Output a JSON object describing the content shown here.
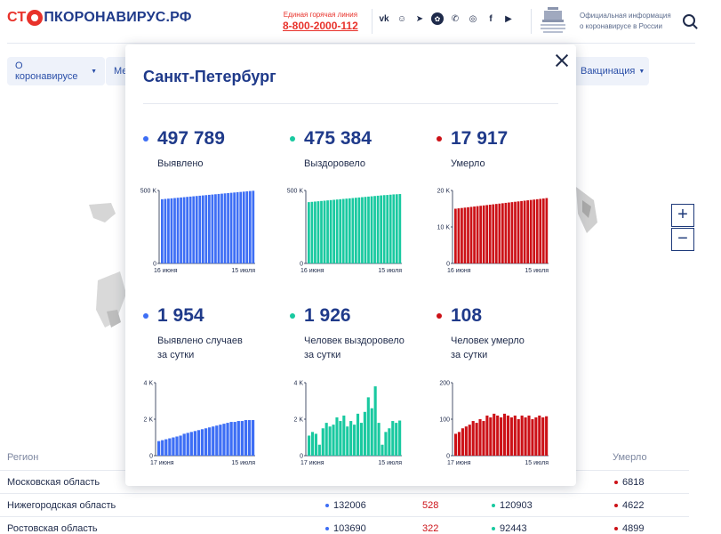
{
  "header": {
    "logo_prefix": "СТ",
    "logo_suffix": "ПКОРОНАВИРУС.РФ",
    "hotline_label": "Единая горячая линия",
    "hotline_number": "8-800-2000-112",
    "gov_text_line1": "Официальная информация",
    "gov_text_line2": "о коронавирусе в России",
    "social": [
      "vk-icon",
      "ok-icon",
      "telegram-icon",
      "viber-alt-icon",
      "viber-icon",
      "instagram-icon",
      "facebook-icon",
      "youtube-icon"
    ]
  },
  "nav": {
    "item1": "О коронавирусе",
    "item2": "Ме",
    "item3": "Вакцинация"
  },
  "zoom": {
    "plus": "+",
    "minus": "−"
  },
  "table": {
    "col_region": "Регион",
    "col_died": "Умерло",
    "rows": [
      {
        "region": "Московская область",
        "cases": "",
        "new": "",
        "recovered": "",
        "died": "6818"
      },
      {
        "region": "Нижегородская область",
        "cases": "132006",
        "new": "528",
        "recovered": "120903",
        "died": "4622"
      },
      {
        "region": "Ростовская область",
        "cases": "103690",
        "new": "322",
        "recovered": "92443",
        "died": "4899"
      }
    ]
  },
  "colors": {
    "blue": "#3d6ef5",
    "green": "#19c9a0",
    "red": "#cc1117",
    "title": "#1f3a8a"
  },
  "modal": {
    "title": "Санкт-Петербург",
    "stats": [
      {
        "value": "497 789",
        "label1": "Выявлено",
        "label2": ""
      },
      {
        "value": "475 384",
        "label1": "Выздоровело",
        "label2": ""
      },
      {
        "value": "17 917",
        "label1": "Умерло",
        "label2": ""
      },
      {
        "value": "1 954",
        "label1": "Выявлено случаев",
        "label2": "за сутки"
      },
      {
        "value": "1 926",
        "label1": "Человек выздоровело",
        "label2": "за сутки"
      },
      {
        "value": "108",
        "label1": "Человек умерло",
        "label2": "за сутки"
      }
    ]
  },
  "chart_data": [
    {
      "type": "bar",
      "color": "blue",
      "ylim": [
        0,
        500000
      ],
      "ytick_labels": [
        "500 K",
        "0"
      ],
      "xtick_labels": [
        "16 июня",
        "15 июля"
      ],
      "values": [
        440000,
        442000,
        444000,
        446000,
        448000,
        450000,
        452000,
        454000,
        456000,
        458000,
        460000,
        462000,
        464000,
        466000,
        468000,
        470000,
        472000,
        474000,
        476000,
        478000,
        480000,
        482000,
        484000,
        486000,
        488000,
        490000,
        492000,
        494000,
        496000,
        497789
      ]
    },
    {
      "type": "bar",
      "color": "green",
      "ylim": [
        0,
        500000
      ],
      "ytick_labels": [
        "500 K",
        "0"
      ],
      "xtick_labels": [
        "16 июня",
        "15 июля"
      ],
      "values": [
        420000,
        422000,
        424000,
        426000,
        428000,
        430000,
        432000,
        434000,
        436000,
        438000,
        440000,
        442000,
        444000,
        446000,
        448000,
        450000,
        452000,
        454000,
        456000,
        458000,
        460000,
        462000,
        464000,
        466000,
        468000,
        469000,
        471000,
        473000,
        474000,
        475384
      ]
    },
    {
      "type": "bar",
      "color": "red",
      "ylim": [
        0,
        20000
      ],
      "ytick_labels": [
        "20 K",
        "10 K",
        "0"
      ],
      "xtick_labels": [
        "16 июня",
        "15 июля"
      ],
      "values": [
        15000,
        15100,
        15200,
        15300,
        15400,
        15500,
        15600,
        15700,
        15800,
        15900,
        16000,
        16100,
        16200,
        16300,
        16400,
        16500,
        16600,
        16700,
        16800,
        16900,
        17000,
        17100,
        17200,
        17300,
        17400,
        17500,
        17600,
        17700,
        17800,
        17917
      ]
    },
    {
      "type": "bar",
      "color": "blue",
      "ylim": [
        0,
        4000
      ],
      "ytick_labels": [
        "4 K",
        "2 K",
        "0"
      ],
      "xtick_labels": [
        "17 июня",
        "15 июля"
      ],
      "values": [
        800,
        850,
        900,
        950,
        1000,
        1050,
        1100,
        1200,
        1250,
        1300,
        1350,
        1400,
        1450,
        1500,
        1550,
        1600,
        1650,
        1700,
        1750,
        1800,
        1850,
        1850,
        1900,
        1900,
        1950,
        1950,
        1954
      ]
    },
    {
      "type": "bar",
      "color": "green",
      "ylim": [
        0,
        4000
      ],
      "ytick_labels": [
        "4 K",
        "2 K",
        "0"
      ],
      "xtick_labels": [
        "17 июня",
        "15 июля"
      ],
      "values": [
        1100,
        1300,
        1200,
        600,
        1500,
        1800,
        1600,
        1700,
        2100,
        1900,
        2200,
        1600,
        1900,
        1700,
        2300,
        1800,
        2400,
        3200,
        2600,
        3800,
        1800,
        600,
        1300,
        1500,
        1900,
        1800,
        1926
      ]
    },
    {
      "type": "bar",
      "color": "red",
      "ylim": [
        0,
        200
      ],
      "ytick_labels": [
        "200",
        "100",
        "0"
      ],
      "xtick_labels": [
        "17 июня",
        "15 июля"
      ],
      "values": [
        60,
        65,
        75,
        80,
        85,
        95,
        90,
        100,
        95,
        110,
        105,
        115,
        110,
        105,
        115,
        110,
        105,
        110,
        100,
        110,
        105,
        110,
        100,
        105,
        110,
        105,
        108
      ]
    }
  ]
}
